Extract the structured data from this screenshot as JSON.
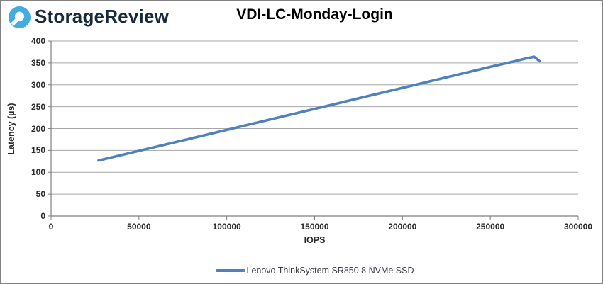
{
  "header": {
    "brand": "StorageReview",
    "logo_icon": "storagereview-droplet-icon",
    "logo_color": "#41ADE2"
  },
  "chart_data": {
    "type": "line",
    "title": "VDI-LC-Monday-Login",
    "xlabel": "IOPS",
    "ylabel": "Latency (µs)",
    "xlim": [
      0,
      300000
    ],
    "ylim": [
      0,
      400
    ],
    "x_ticks": [
      0,
      50000,
      100000,
      150000,
      200000,
      250000,
      300000
    ],
    "y_ticks": [
      0,
      50,
      100,
      150,
      200,
      250,
      300,
      350,
      400
    ],
    "grid": "horizontal",
    "grid_color": "#A6A6A6",
    "axis_color": "#7F7F7F",
    "legend_position": "bottom",
    "series": [
      {
        "name": "Lenovo ThinkSystem SR850 8 NVMe SSD",
        "color": "#4F81BD",
        "points": [
          [
            27000,
            127
          ],
          [
            50000,
            149
          ],
          [
            75000,
            173
          ],
          [
            100000,
            197
          ],
          [
            125000,
            221
          ],
          [
            150000,
            245
          ],
          [
            175000,
            269
          ],
          [
            200000,
            293
          ],
          [
            225000,
            317
          ],
          [
            250000,
            341
          ],
          [
            262000,
            352
          ],
          [
            270000,
            360
          ],
          [
            275000,
            364
          ],
          [
            278000,
            354
          ]
        ]
      }
    ]
  }
}
